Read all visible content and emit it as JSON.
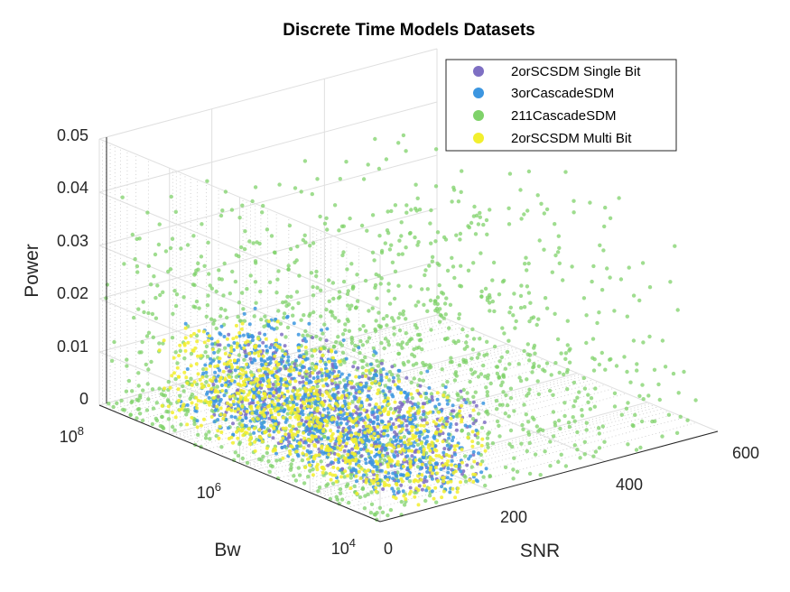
{
  "chart_data": {
    "type": "scatter",
    "subtype": "scatter3d",
    "title": "Discrete Time Models Datasets",
    "xlabel": "SNR",
    "ylabel": "Bw",
    "zlabel": "Power",
    "x_ticks": [
      "0",
      "200",
      "400",
      "600"
    ],
    "y_ticks": [
      {
        "base": "10",
        "exp": "4"
      },
      {
        "base": "10",
        "exp": "6"
      },
      {
        "base": "10",
        "exp": "8"
      }
    ],
    "z_ticks": [
      "0",
      "0.01",
      "0.02",
      "0.03",
      "0.04",
      "0.05"
    ],
    "xlim": [
      0,
      600
    ],
    "ylim_log10": [
      4,
      8
    ],
    "zlim": [
      0,
      0.05
    ],
    "grid": true,
    "legend_position": "top-right",
    "series": [
      {
        "name": "2orSCSDM Single Bit",
        "color": "#7e6fc3",
        "snr_range": [
          80,
          220
        ],
        "bw_log10_range": [
          4.2,
          7.2
        ],
        "power_range": [
          0,
          0.015
        ],
        "count": 520
      },
      {
        "name": "3orCascadeSDM",
        "color": "#3c96e0",
        "snr_range": [
          60,
          220
        ],
        "bw_log10_range": [
          4.2,
          7.4
        ],
        "power_range": [
          0,
          0.017
        ],
        "count": 900
      },
      {
        "name": "211CascadeSDM",
        "color": "#7fd26a",
        "snr_range": [
          0,
          600
        ],
        "bw_log10_range": [
          4.0,
          8.0
        ],
        "power_range": [
          0,
          0.04
        ],
        "count": 1500
      },
      {
        "name": "2orSCSDM Multi Bit",
        "color": "#f2ef2e",
        "snr_range": [
          40,
          200
        ],
        "bw_log10_range": [
          4.0,
          7.6
        ],
        "power_range": [
          0,
          0.016
        ],
        "count": 850
      }
    ]
  }
}
